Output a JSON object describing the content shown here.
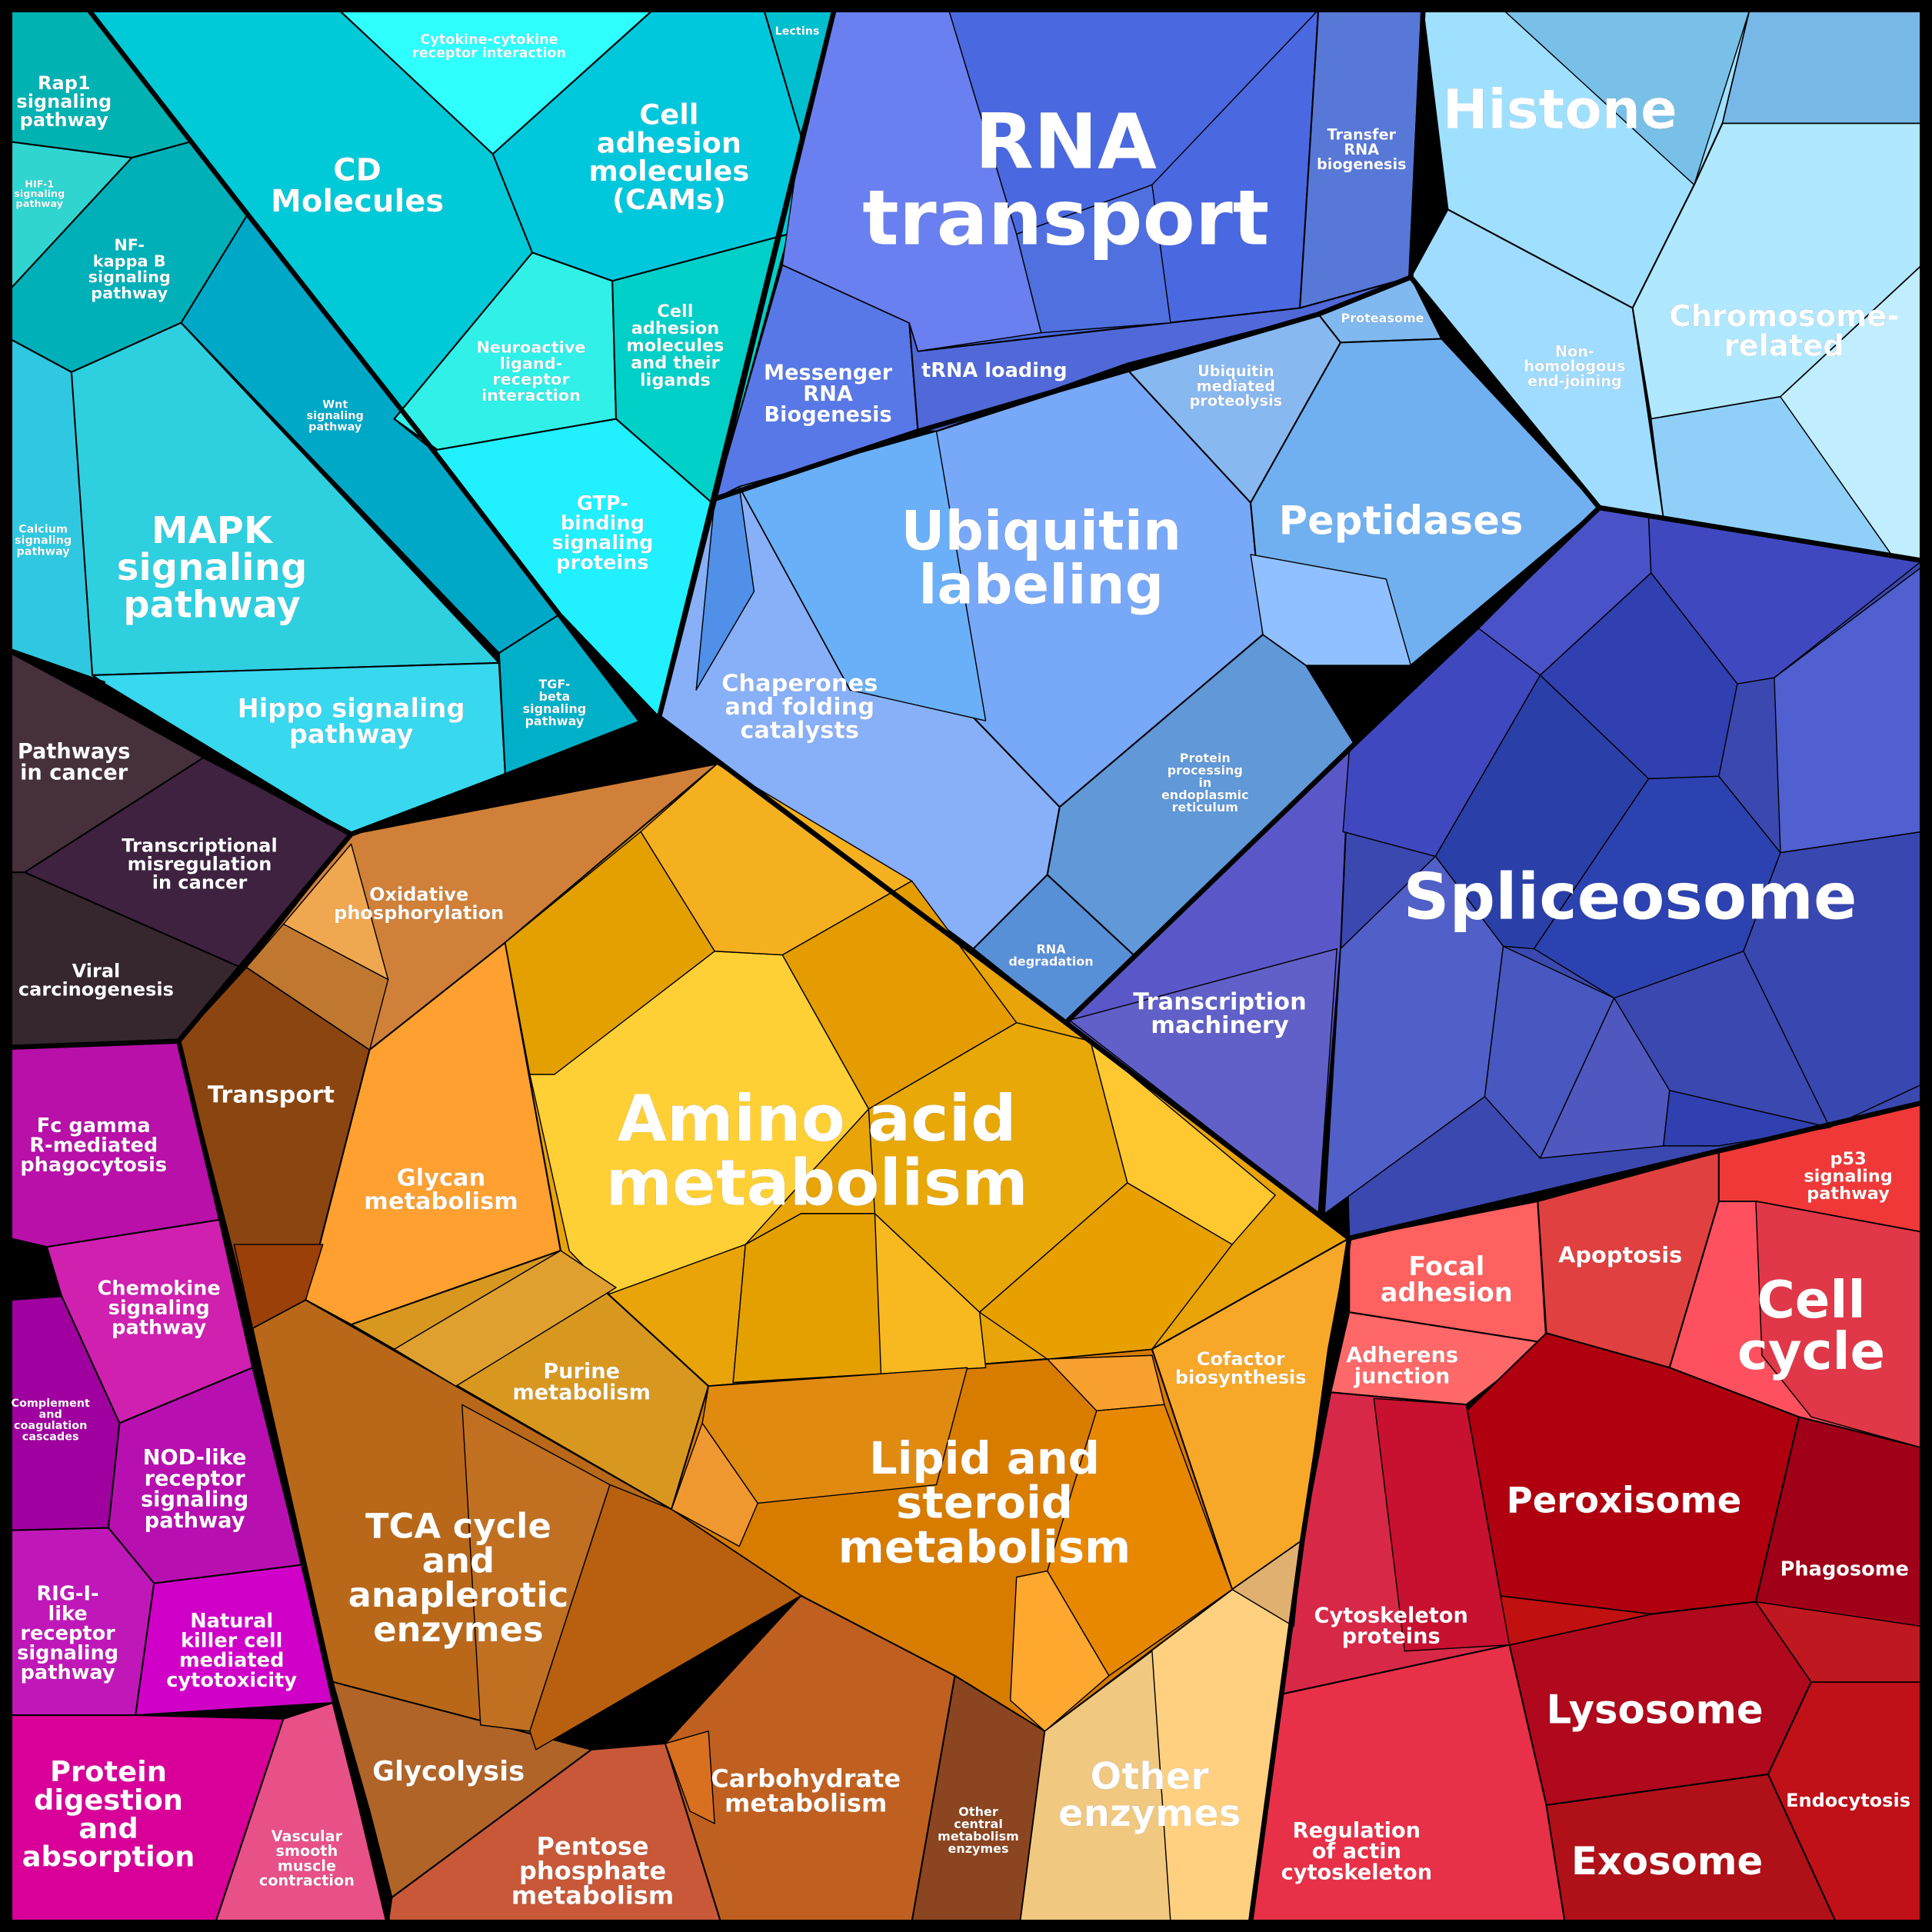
{
  "cells": {
    "rap1": {
      "label": [
        "Rap1",
        "signaling",
        "pathway"
      ],
      "color": "#00b2b2"
    },
    "hif1": {
      "label": [
        "HIF-1",
        "signaling",
        "pathway"
      ],
      "color": "#30d5d0"
    },
    "nfkb": {
      "label": [
        "NF-",
        "kappa B",
        "signaling",
        "pathway"
      ],
      "color": "#00b0b8"
    },
    "calcium": {
      "label": [
        "Calcium",
        "signaling",
        "pathway"
      ],
      "color": "#30c8e0"
    },
    "mapk": {
      "label": [
        "MAPK",
        "signaling",
        "pathway"
      ],
      "color": "#2ed0e0"
    },
    "wnt": {
      "label": [
        "Wnt",
        "signaling",
        "pathway"
      ],
      "color": "#00a8c8"
    },
    "hippo": {
      "label": [
        "Hippo signaling",
        "pathway"
      ],
      "color": "#38d8ee"
    },
    "tgf": {
      "label": [
        "TGF-",
        "beta",
        "signaling",
        "pathway"
      ],
      "color": "#00b0c8"
    },
    "cd": {
      "label": [
        "CD",
        "Molecules"
      ],
      "color": "#00cad8"
    },
    "cytokine": {
      "label": [
        "Cytokine-cytokine",
        "receptor interaction"
      ],
      "color": "#30ffff"
    },
    "lectins": {
      "label": [
        "Lectins"
      ],
      "color": "#00c0d0"
    },
    "cams": {
      "label": [
        "Cell",
        "adhesion",
        "molecules",
        "(CAMs)"
      ],
      "color": "#00c8dc"
    },
    "neuro": {
      "label": [
        "Neuroactive",
        "ligand-",
        "receptor",
        "interaction"
      ],
      "color": "#30f0e8"
    },
    "camlig": {
      "label": [
        "Cell",
        "adhesion",
        "molecules",
        "and their",
        "ligands"
      ],
      "color": "#00d0c8"
    },
    "gtp": {
      "label": [
        "GTP-",
        "binding",
        "signaling",
        "proteins"
      ],
      "color": "#20f0ff"
    },
    "pathcancer": {
      "label": [
        "Pathways",
        "in cancer"
      ],
      "color": "#45303c"
    },
    "transmis": {
      "label": [
        "Transcriptional",
        "misregulation",
        "in cancer"
      ],
      "color": "#3e2240"
    },
    "viral": {
      "label": [
        "Viral",
        "carcinogenesis"
      ],
      "color": "#36262e"
    },
    "fc": {
      "label": [
        "Fc gamma",
        "R-mediated",
        "phagocytosis"
      ],
      "color": "#b810a8"
    },
    "chemokine": {
      "label": [
        "Chemokine",
        "signaling",
        "pathway"
      ],
      "color": "#d020b0"
    },
    "complement": {
      "label": [
        "Complement",
        "and",
        "coagulation",
        "cascades"
      ],
      "color": "#a000a0"
    },
    "nod": {
      "label": [
        "NOD-like",
        "receptor",
        "signaling",
        "pathway"
      ],
      "color": "#b810b0"
    },
    "rig": {
      "label": [
        "RIG-I-",
        "like",
        "receptor",
        "signaling",
        "pathway"
      ],
      "color": "#c018b8"
    },
    "nk": {
      "label": [
        "Natural",
        "killer cell",
        "mediated",
        "cytotoxicity"
      ],
      "color": "#d000c8"
    },
    "protdig": {
      "label": [
        "Protein",
        "digestion",
        "and",
        "absorption"
      ],
      "color": "#d80098"
    },
    "vascular": {
      "label": [
        "Vascular",
        "smooth",
        "muscle",
        "contraction"
      ],
      "color": "#e85088"
    },
    "oxphos": {
      "label": [
        "Oxidative",
        "phosphorylation"
      ],
      "color": "#d08038"
    },
    "transport": {
      "label": [
        "Transport"
      ],
      "color": "#8b4510"
    },
    "glycan": {
      "label": [
        "Glycan",
        "metabolism"
      ],
      "color": "#ffa030"
    },
    "amino": {
      "label": [
        "Amino acid",
        "metabolism"
      ],
      "color": "#e8a408"
    },
    "purine": {
      "label": [
        "Purine",
        "metabolism"
      ],
      "color": "#d89820"
    },
    "lipid": {
      "label": [
        "Lipid and",
        "steroid",
        "metabolism"
      ],
      "color": "#d87c00"
    },
    "cofactor": {
      "label": [
        "Cofactor",
        "biosynthesis"
      ],
      "color": "#f8a828"
    },
    "tca": {
      "label": [
        "TCA cycle",
        "and",
        "anaplerotic",
        "enzymes"
      ],
      "color": "#b86818"
    },
    "glycolysis": {
      "label": [
        "Glycolysis"
      ],
      "color": "#b06428"
    },
    "pentose": {
      "label": [
        "Pentose",
        "phosphate",
        "metabolism"
      ],
      "color": "#c85838"
    },
    "carbo": {
      "label": [
        "Carbohydrate",
        "metabolism"
      ],
      "color": "#c06020"
    },
    "othercentral": {
      "label": [
        "Other",
        "central",
        "metabolism",
        "enzymes"
      ],
      "color": "#8b4520"
    },
    "otherenz": {
      "label": [
        "Other",
        "enzymes"
      ],
      "color": "#ffd080"
    },
    "rnatransport": {
      "label": [
        "RNA",
        "transport"
      ],
      "color": "#4a68e0"
    },
    "trnabio": {
      "label": [
        "Transfer",
        "RNA",
        "biogenesis"
      ],
      "color": "#5878d8"
    },
    "mrna": {
      "label": [
        "Messenger",
        "RNA",
        "Biogenesis"
      ],
      "color": "#5878e8"
    },
    "trnaload": {
      "label": [
        "tRNA loading"
      ],
      "color": "#5068d8"
    },
    "ubiq": {
      "label": [
        "Ubiquitin",
        "labeling"
      ],
      "color": "#78a8f8"
    },
    "ubiqprot": {
      "label": [
        "Ubiquitin",
        "mediated",
        "proteolysis"
      ],
      "color": "#88b8f0"
    },
    "proteasome": {
      "label": [
        "Proteasome"
      ],
      "color": "#80b8f0"
    },
    "peptidases": {
      "label": [
        "Peptidases"
      ],
      "color": "#70b0f0"
    },
    "chaperones": {
      "label": [
        "Chaperones",
        "and folding",
        "catalysts"
      ],
      "color": "#88b0f8"
    },
    "proteinER": {
      "label": [
        "Protein",
        "processing",
        "in",
        "endoplasmic",
        "reticulum"
      ],
      "color": "#6098d8"
    },
    "rnadeg": {
      "label": [
        "RNA",
        "degradation"
      ],
      "color": "#5890d8"
    },
    "histone": {
      "label": [
        "Histone"
      ],
      "color": "#a0e0ff"
    },
    "chromosome": {
      "label": [
        "Chromosome-",
        "related"
      ],
      "color": "#b0e8ff"
    },
    "nonhom": {
      "label": [
        "Non-",
        "homologous",
        "end-joining"
      ],
      "color": "#a0dcff"
    },
    "spliceosome": {
      "label": [
        "Spliceosome"
      ],
      "color": "#3a48b0"
    },
    "transcmach": {
      "label": [
        "Transcription",
        "machinery"
      ],
      "color": "#5a58c8"
    },
    "focal": {
      "label": [
        "Focal",
        "adhesion"
      ],
      "color": "#ff6060"
    },
    "adherens": {
      "label": [
        "Adherens",
        "junction"
      ],
      "color": "#ff6868"
    },
    "apoptosis": {
      "label": [
        "Apoptosis"
      ],
      "color": "#e04040"
    },
    "p53": {
      "label": [
        "p53",
        "signaling",
        "pathway"
      ],
      "color": "#f03838"
    },
    "cellcycle": {
      "label": [
        "Cell",
        "cycle"
      ],
      "color": "#ff5060"
    },
    "peroxisome": {
      "label": [
        "Peroxisome"
      ],
      "color": "#b00010"
    },
    "phagosome": {
      "label": [
        "Phagosome"
      ],
      "color": "#a00018"
    },
    "cytoskel": {
      "label": [
        "Cytoskeleton",
        "proteins"
      ],
      "color": "#d82848"
    },
    "lysosome": {
      "label": [
        "Lysosome"
      ],
      "color": "#b0081c"
    },
    "regactin": {
      "label": [
        "Regulation",
        "of actin",
        "cytoskeleton"
      ],
      "color": "#e83048"
    },
    "endocytosis": {
      "label": [
        "Endocytosis"
      ],
      "color": "#c01018"
    },
    "exosome": {
      "label": [
        "Exosome"
      ],
      "color": "#b01018"
    }
  }
}
